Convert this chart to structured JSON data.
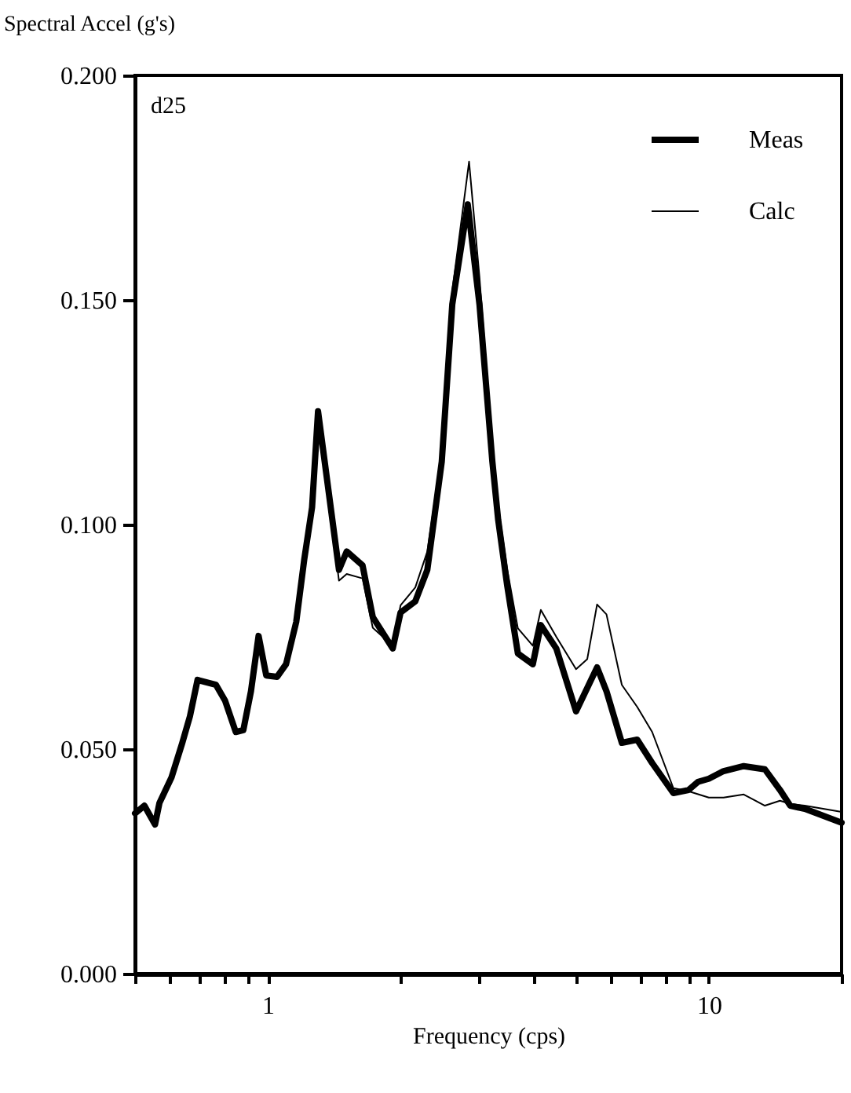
{
  "chart_data": {
    "type": "line",
    "xlabel": "Frequency (cps)",
    "ylabel": "Spectral Accel (g's)",
    "annotations": [
      "d25"
    ],
    "log": "x",
    "grid": false,
    "legend": "top right",
    "line_style": "solid",
    "marker": "none",
    "xlim": [
      0.5,
      20
    ],
    "ylim": [
      0,
      0.2
    ],
    "xticks": [
      {
        "value": 0.5,
        "label": null
      },
      {
        "value": 0.6,
        "label": null
      },
      {
        "value": 0.7,
        "label": null
      },
      {
        "value": 0.8,
        "label": null
      },
      {
        "value": 0.9,
        "label": null
      },
      1,
      {
        "value": 2,
        "label": null
      },
      {
        "value": 3,
        "label": null
      },
      {
        "value": 4,
        "label": null
      },
      {
        "value": 5,
        "label": null
      },
      {
        "value": 6,
        "label": null
      },
      {
        "value": 7,
        "label": null
      },
      {
        "value": 8,
        "label": null
      },
      {
        "value": 9,
        "label": null
      },
      10,
      {
        "value": 20,
        "label": null
      }
    ],
    "yticks": [
      {
        "value": 0,
        "label": "0.000"
      },
      {
        "value": 0.05,
        "label": "0.050"
      },
      {
        "value": 0.1,
        "label": "0.100"
      },
      {
        "value": 0.15,
        "label": "0.150"
      },
      {
        "value": 0.2,
        "label": "0.200"
      }
    ],
    "series": [
      {
        "name": "Meas",
        "color": "#000000",
        "x": [
          0.5,
          0.525,
          0.555,
          0.568,
          0.605,
          0.64,
          0.666,
          0.693,
          0.763,
          0.8,
          0.846,
          0.88,
          0.916,
          0.953,
          0.992,
          1.05,
          1.1,
          1.16,
          1.21,
          1.26,
          1.3,
          1.45,
          1.51,
          1.64,
          1.73,
          1.92,
          2.0,
          2.16,
          2.3,
          2.48,
          2.62,
          2.84,
          3.02,
          3.23,
          3.33,
          3.49,
          3.69,
          3.99,
          4.16,
          4.51,
          5.0,
          5.58,
          5.86,
          6.35,
          6.88,
          7.44,
          8.31,
          9.0,
          9.45,
          10.0,
          10.8,
          12.0,
          13.4,
          14.5,
          15.3,
          16.5,
          20
        ],
        "values": [
          0.0357,
          0.0374,
          0.0332,
          0.038,
          0.0437,
          0.0514,
          0.0573,
          0.0654,
          0.0643,
          0.0608,
          0.0538,
          0.0542,
          0.0629,
          0.0752,
          0.0664,
          0.0661,
          0.0689,
          0.0783,
          0.0923,
          0.1038,
          0.1252,
          0.0899,
          0.094,
          0.0909,
          0.0794,
          0.0724,
          0.0804,
          0.0829,
          0.0899,
          0.114,
          0.149,
          0.1713,
          0.149,
          0.114,
          0.101,
          0.0864,
          0.0713,
          0.0689,
          0.0776,
          0.0724,
          0.0584,
          0.0682,
          0.0629,
          0.0514,
          0.0521,
          0.0469,
          0.0402,
          0.0409,
          0.0427,
          0.0434,
          0.0451,
          0.0462,
          0.0455,
          0.0409,
          0.0374,
          0.0367,
          0.0336
        ]
      },
      {
        "name": "Calc",
        "color": "#000000",
        "x": [
          0.5,
          0.525,
          0.555,
          0.568,
          0.605,
          0.64,
          0.666,
          0.693,
          0.763,
          0.8,
          0.846,
          0.88,
          0.916,
          0.953,
          0.992,
          1.05,
          1.1,
          1.16,
          1.21,
          1.26,
          1.3,
          1.45,
          1.51,
          1.64,
          1.73,
          1.92,
          2.0,
          2.16,
          2.3,
          2.48,
          2.62,
          2.86,
          3.02,
          3.23,
          3.33,
          3.49,
          3.69,
          3.99,
          4.16,
          4.51,
          5.0,
          5.3,
          5.58,
          5.86,
          6.35,
          6.88,
          7.44,
          8.31,
          9.0,
          10.0,
          10.8,
          12.0,
          13.4,
          14.5,
          15.3,
          16.5,
          20
        ],
        "values": [
          0.0357,
          0.0374,
          0.0332,
          0.038,
          0.0437,
          0.0514,
          0.0573,
          0.0654,
          0.0643,
          0.0608,
          0.0538,
          0.0542,
          0.0629,
          0.0752,
          0.0664,
          0.0661,
          0.0689,
          0.0783,
          0.0923,
          0.1038,
          0.1252,
          0.0875,
          0.089,
          0.088,
          0.077,
          0.073,
          0.082,
          0.086,
          0.094,
          0.116,
          0.152,
          0.1808,
          0.155,
          0.117,
          0.104,
          0.09,
          0.0769,
          0.073,
          0.081,
          0.075,
          0.0678,
          0.07,
          0.0822,
          0.08,
          0.0643,
          0.0594,
          0.0538,
          0.0413,
          0.0406,
          0.0392,
          0.0392,
          0.0399,
          0.0374,
          0.0385,
          0.0378,
          0.0374,
          0.036
        ]
      }
    ]
  }
}
